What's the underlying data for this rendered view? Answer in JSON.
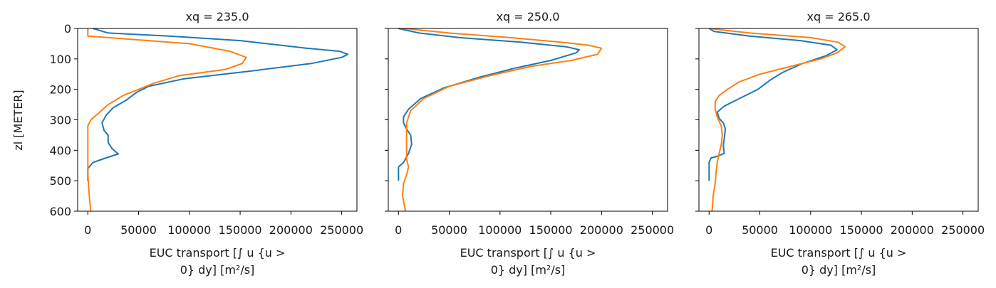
{
  "chart_data": {
    "type": "line",
    "shared_y": true,
    "ylabel": "zl [METER]",
    "ylim": [
      600,
      0
    ],
    "y_ticks": [
      "0",
      "100",
      "200",
      "300",
      "400",
      "500",
      "600"
    ],
    "y_tick_values": [
      0,
      100,
      200,
      300,
      400,
      500,
      600
    ],
    "xlim": [
      -10000,
      265000
    ],
    "x_ticks": [
      "0",
      "50000",
      "100000",
      "150000",
      "200000",
      "250000"
    ],
    "x_tick_values": [
      0,
      50000,
      100000,
      150000,
      200000,
      250000
    ],
    "xlabel_lines": [
      "EUC transport [∫ u {u >",
      "0} dy] [m²/s]"
    ],
    "grid": false,
    "series_colors": [
      "#1f77b4",
      "#ff7f0e"
    ],
    "panels": [
      {
        "title": "xq = 235.0",
        "series": [
          {
            "points": [
              [
                5000,
                0
              ],
              [
                20000,
                15
              ],
              [
                80000,
                25
              ],
              [
                150000,
                40
              ],
              [
                215000,
                65
              ],
              [
                248000,
                75
              ],
              [
                256000,
                85
              ],
              [
                250000,
                95
              ],
              [
                220000,
                115
              ],
              [
                160000,
                140
              ],
              [
                95000,
                165
              ],
              [
                60000,
                190
              ],
              [
                48000,
                210
              ],
              [
                38000,
                235
              ],
              [
                25000,
                260
              ],
              [
                18000,
                285
              ],
              [
                14000,
                310
              ],
              [
                16000,
                335
              ],
              [
                20000,
                350
              ],
              [
                20000,
                375
              ],
              [
                24000,
                395
              ],
              [
                30000,
                412
              ],
              [
                18000,
                425
              ],
              [
                5000,
                440
              ],
              [
                0,
                460
              ],
              [
                0,
                500
              ]
            ]
          },
          {
            "points": [
              [
                0,
                0
              ],
              [
                0,
                10
              ],
              [
                0,
                25
              ],
              [
                40000,
                35
              ],
              [
                100000,
                50
              ],
              [
                140000,
                75
              ],
              [
                156000,
                95
              ],
              [
                152000,
                115
              ],
              [
                135000,
                135
              ],
              [
                90000,
                155
              ],
              [
                65000,
                180
              ],
              [
                50000,
                200
              ],
              [
                35000,
                220
              ],
              [
                20000,
                250
              ],
              [
                10000,
                280
              ],
              [
                3000,
                300
              ],
              [
                0,
                320
              ],
              [
                0,
                400
              ],
              [
                0,
                480
              ],
              [
                1000,
                530
              ],
              [
                2000,
                570
              ],
              [
                3000,
                600
              ]
            ]
          }
        ]
      },
      {
        "title": "xq = 250.0",
        "series": [
          {
            "points": [
              [
                0,
                0
              ],
              [
                20000,
                15
              ],
              [
                60000,
                30
              ],
              [
                120000,
                45
              ],
              [
                165000,
                60
              ],
              [
                178000,
                70
              ],
              [
                175000,
                80
              ],
              [
                150000,
                105
              ],
              [
                115000,
                130
              ],
              [
                80000,
                160
              ],
              [
                45000,
                195
              ],
              [
                22000,
                230
              ],
              [
                10000,
                265
              ],
              [
                5000,
                290
              ],
              [
                5000,
                310
              ],
              [
                8000,
                330
              ],
              [
                12000,
                350
              ],
              [
                13000,
                380
              ],
              [
                10000,
                410
              ],
              [
                5000,
                440
              ],
              [
                0,
                455
              ],
              [
                0,
                500
              ]
            ]
          },
          {
            "points": [
              [
                5000,
                0
              ],
              [
                50000,
                15
              ],
              [
                110000,
                30
              ],
              [
                160000,
                45
              ],
              [
                187000,
                55
              ],
              [
                200000,
                65
              ],
              [
                196000,
                85
              ],
              [
                170000,
                105
              ],
              [
                130000,
                125
              ],
              [
                90000,
                155
              ],
              [
                50000,
                190
              ],
              [
                25000,
                230
              ],
              [
                12000,
                270
              ],
              [
                8000,
                310
              ],
              [
                8000,
                350
              ],
              [
                8000,
                390
              ],
              [
                8000,
                430
              ],
              [
                10000,
                455
              ],
              [
                8000,
                480
              ],
              [
                5000,
                510
              ],
              [
                4000,
                550
              ],
              [
                7000,
                600
              ]
            ]
          }
        ]
      },
      {
        "title": "xq = 265.0",
        "series": [
          {
            "points": [
              [
                0,
                0
              ],
              [
                5000,
                10
              ],
              [
                40000,
                25
              ],
              [
                90000,
                40
              ],
              [
                120000,
                55
              ],
              [
                126000,
                70
              ],
              [
                115000,
                90
              ],
              [
                92000,
                115
              ],
              [
                72000,
                145
              ],
              [
                60000,
                170
              ],
              [
                48000,
                200
              ],
              [
                30000,
                230
              ],
              [
                15000,
                255
              ],
              [
                8000,
                275
              ],
              [
                10000,
                295
              ],
              [
                14000,
                310
              ],
              [
                16000,
                330
              ],
              [
                15000,
                360
              ],
              [
                14000,
                385
              ],
              [
                15000,
                410
              ],
              [
                8000,
                420
              ],
              [
                2000,
                425
              ],
              [
                0,
                440
              ],
              [
                0,
                500
              ]
            ]
          },
          {
            "points": [
              [
                0,
                0
              ],
              [
                40000,
                15
              ],
              [
                100000,
                30
              ],
              [
                127000,
                45
              ],
              [
                134000,
                60
              ],
              [
                126000,
                80
              ],
              [
                110000,
                100
              ],
              [
                80000,
                125
              ],
              [
                50000,
                150
              ],
              [
                30000,
                175
              ],
              [
                18000,
                200
              ],
              [
                10000,
                220
              ],
              [
                6000,
                240
              ],
              [
                6000,
                265
              ],
              [
                8000,
                290
              ],
              [
                12000,
                320
              ],
              [
                13000,
                350
              ],
              [
                12000,
                380
              ],
              [
                10000,
                410
              ],
              [
                8000,
                440
              ],
              [
                7000,
                470
              ],
              [
                6000,
                510
              ],
              [
                4000,
                550
              ],
              [
                3000,
                600
              ]
            ]
          }
        ]
      }
    ]
  }
}
